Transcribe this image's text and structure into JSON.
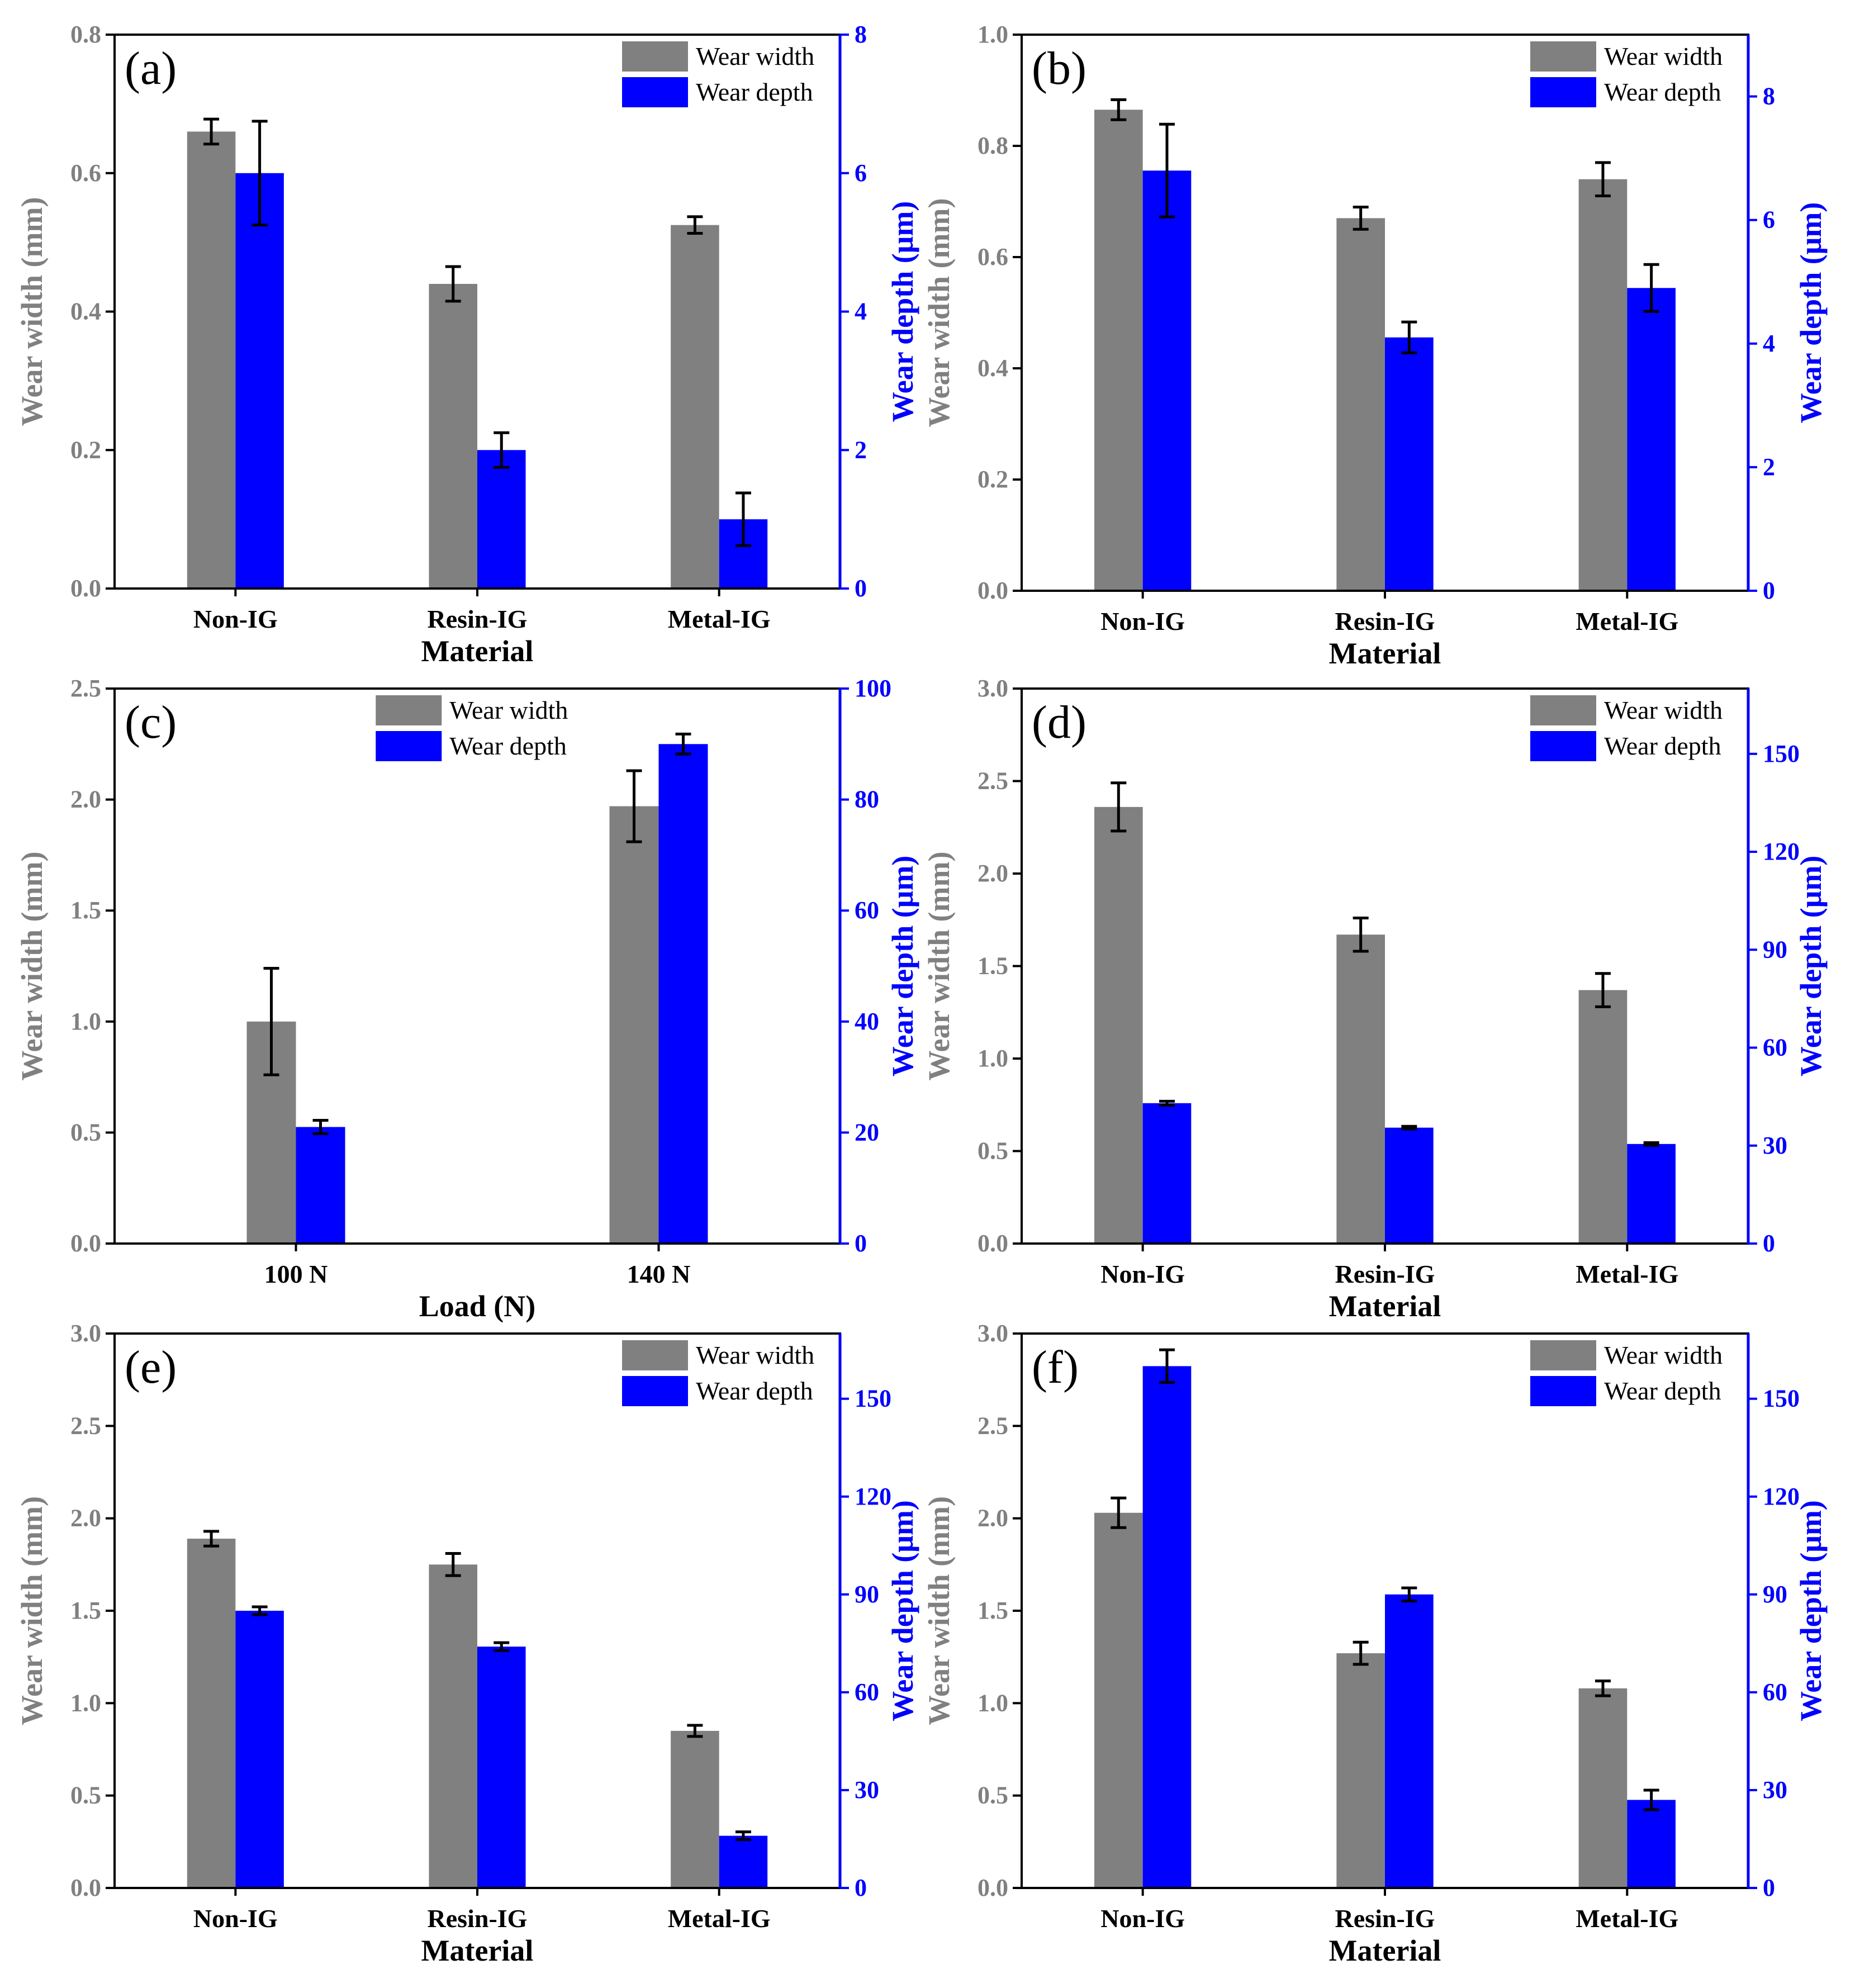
{
  "colors": {
    "width_bar": "#808080",
    "depth_bar": "#0000ff",
    "left_axis": "#808080",
    "right_axis": "#0000ff",
    "error": "#000000"
  },
  "chart_data": [
    {
      "panel": "(a)",
      "type": "bar",
      "categories": [
        "Non-IG",
        "Resin-IG",
        "Metal-IG"
      ],
      "xlabel": "Material",
      "ylabel": "Wear width (mm)",
      "y2label": "Wear depth (μm)",
      "ylim": [
        0,
        0.8
      ],
      "yticks": [
        "0.0",
        "0.2",
        "0.4",
        "0.6",
        "0.8"
      ],
      "y2lim": [
        0,
        8
      ],
      "y2ticks": [
        "0",
        "2",
        "4",
        "6",
        "8"
      ],
      "legend": [
        "Wear width",
        "Wear depth"
      ],
      "legend_position": "top-right",
      "series": [
        {
          "name": "Wear width",
          "axis": "left",
          "values": [
            0.66,
            0.44,
            0.525
          ],
          "errors": [
            0.018,
            0.025,
            0.012
          ]
        },
        {
          "name": "Wear depth",
          "axis": "right",
          "values": [
            6.0,
            2.0,
            1.0
          ],
          "errors": [
            0.75,
            0.25,
            0.38
          ]
        }
      ]
    },
    {
      "panel": "(b)",
      "type": "bar",
      "categories": [
        "Non-IG",
        "Resin-IG",
        "Metal-IG"
      ],
      "xlabel": "Material",
      "ylabel": "Wear width (mm)",
      "y2label": "Wear depth (μm)",
      "ylim": [
        0,
        1.0
      ],
      "yticks": [
        "0.0",
        "0.2",
        "0.4",
        "0.6",
        "0.8",
        "1.0"
      ],
      "y2lim": [
        0,
        9
      ],
      "y2ticks": [
        "0",
        "2",
        "4",
        "6",
        "8"
      ],
      "legend": [
        "Wear width",
        "Wear depth"
      ],
      "legend_position": "top-right",
      "series": [
        {
          "name": "Wear width",
          "axis": "left",
          "values": [
            0.865,
            0.67,
            0.74
          ],
          "errors": [
            0.018,
            0.02,
            0.03
          ]
        },
        {
          "name": "Wear depth",
          "axis": "right",
          "values": [
            6.8,
            4.1,
            4.9
          ],
          "errors": [
            0.75,
            0.25,
            0.38
          ]
        }
      ]
    },
    {
      "panel": "(c)",
      "type": "bar",
      "categories": [
        "100 N",
        "140 N"
      ],
      "xlabel": "Load (N)",
      "ylabel": "Wear width (mm)",
      "y2label": "Wear depth (μm)",
      "ylim": [
        0,
        2.5
      ],
      "yticks": [
        "0.0",
        "0.5",
        "1.0",
        "1.5",
        "2.0",
        "2.5"
      ],
      "y2lim": [
        0,
        100
      ],
      "y2ticks": [
        "0",
        "20",
        "40",
        "60",
        "80",
        "100"
      ],
      "legend": [
        "Wear width",
        "Wear depth"
      ],
      "legend_position": "top-center",
      "series": [
        {
          "name": "Wear width",
          "axis": "left",
          "values": [
            1.0,
            1.97
          ],
          "errors": [
            0.24,
            0.16
          ]
        },
        {
          "name": "Wear depth",
          "axis": "right",
          "values": [
            21,
            90
          ],
          "errors": [
            1.2,
            1.8
          ]
        }
      ]
    },
    {
      "panel": "(d)",
      "type": "bar",
      "categories": [
        "Non-IG",
        "Resin-IG",
        "Metal-IG"
      ],
      "xlabel": "Material",
      "ylabel": "Wear width (mm)",
      "y2label": "Wear depth (μm)",
      "ylim": [
        0,
        3.0
      ],
      "yticks": [
        "0.0",
        "0.5",
        "1.0",
        "1.5",
        "2.0",
        "2.5",
        "3.0"
      ],
      "y2lim": [
        0,
        170
      ],
      "y2ticks": [
        "0",
        "30",
        "60",
        "90",
        "120",
        "150"
      ],
      "legend": [
        "Wear width",
        "Wear depth"
      ],
      "legend_position": "top-right",
      "series": [
        {
          "name": "Wear width",
          "axis": "left",
          "values": [
            2.36,
            1.67,
            1.37
          ],
          "errors": [
            0.13,
            0.09,
            0.09
          ]
        },
        {
          "name": "Wear depth",
          "axis": "right",
          "values": [
            43,
            35.5,
            30.5
          ],
          "errors": [
            0.6,
            0.4,
            0.4
          ]
        }
      ]
    },
    {
      "panel": "(e)",
      "type": "bar",
      "categories": [
        "Non-IG",
        "Resin-IG",
        "Metal-IG"
      ],
      "xlabel": "Material",
      "ylabel": "Wear width (mm)",
      "y2label": "Wear depth (μm)",
      "ylim": [
        0,
        3.0
      ],
      "yticks": [
        "0.0",
        "0.5",
        "1.0",
        "1.5",
        "2.0",
        "2.5",
        "3.0"
      ],
      "y2lim": [
        0,
        170
      ],
      "y2ticks": [
        "0",
        "30",
        "60",
        "90",
        "120",
        "150"
      ],
      "legend": [
        "Wear width",
        "Wear depth"
      ],
      "legend_position": "top-right",
      "series": [
        {
          "name": "Wear width",
          "axis": "left",
          "values": [
            1.89,
            1.75,
            0.85
          ],
          "errors": [
            0.04,
            0.06,
            0.03
          ]
        },
        {
          "name": "Wear depth",
          "axis": "right",
          "values": [
            85,
            74,
            16
          ],
          "errors": [
            1.2,
            1.2,
            1.2
          ]
        }
      ]
    },
    {
      "panel": "(f)",
      "type": "bar",
      "categories": [
        "Non-IG",
        "Resin-IG",
        "Metal-IG"
      ],
      "xlabel": "Material",
      "ylabel": "Wear width (mm)",
      "y2label": "Wear depth (μm)",
      "ylim": [
        0,
        3.0
      ],
      "yticks": [
        "0.0",
        "0.5",
        "1.0",
        "1.5",
        "2.0",
        "2.5",
        "3.0"
      ],
      "y2lim": [
        0,
        170
      ],
      "y2ticks": [
        "0",
        "30",
        "60",
        "90",
        "120",
        "150"
      ],
      "legend": [
        "Wear width",
        "Wear depth"
      ],
      "legend_position": "top-right",
      "series": [
        {
          "name": "Wear width",
          "axis": "left",
          "values": [
            2.03,
            1.27,
            1.08
          ],
          "errors": [
            0.08,
            0.06,
            0.04
          ]
        },
        {
          "name": "Wear depth",
          "axis": "right",
          "values": [
            160,
            90,
            27
          ],
          "errors": [
            5,
            2,
            3
          ]
        }
      ]
    }
  ]
}
